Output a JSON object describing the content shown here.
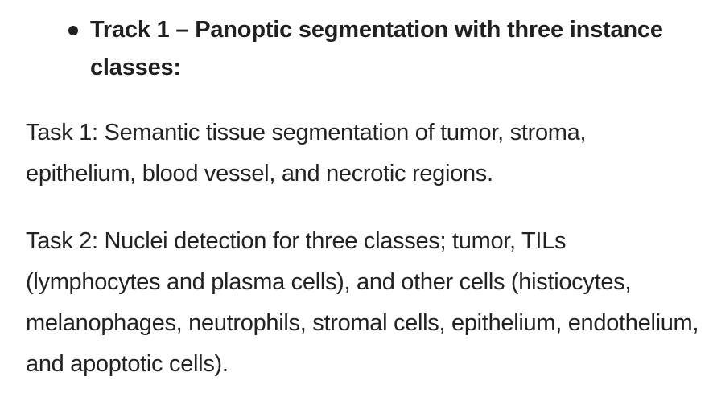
{
  "track": {
    "title": "Track 1 – Panoptic segmentation with three instance classes:"
  },
  "tasks": [
    {
      "text": "Task 1: Semantic tissue segmentation of tumor, stroma, epithelium, blood vessel, and necrotic regions."
    },
    {
      "text": "Task 2: Nuclei detection for three classes; tumor, TILs (lymphocytes and plasma cells), and other cells (histiocytes, melanophages, neutrophils, stromal cells, epithelium, endothelium, and apoptotic cells)."
    }
  ]
}
